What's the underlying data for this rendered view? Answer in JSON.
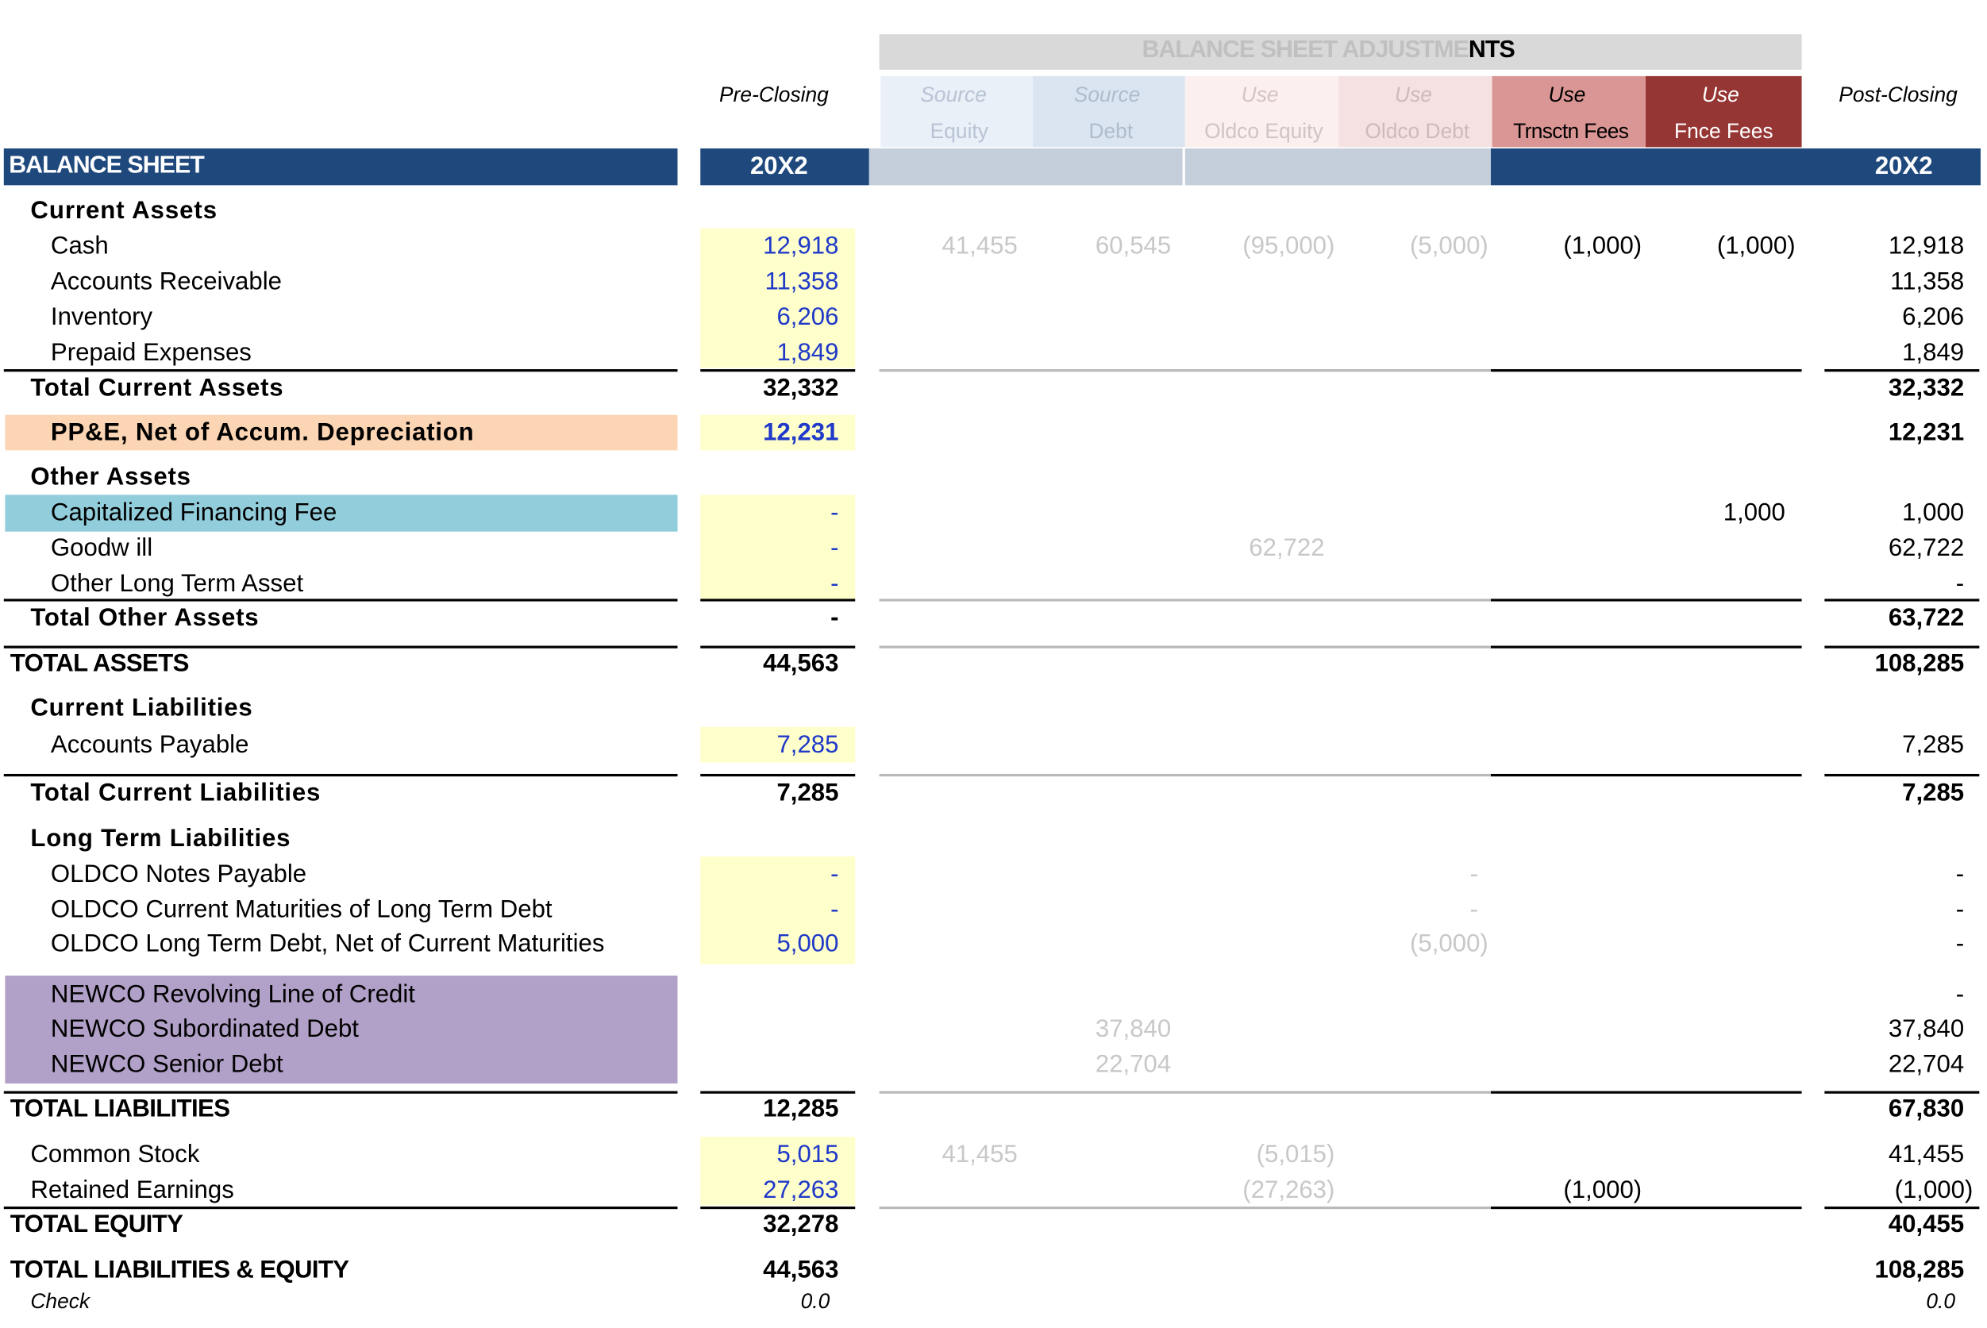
{
  "banner": {
    "title_light": "BALANCE SHEET ADJUSTME",
    "title_dark": "NTS",
    "colors": {
      "banner_bg": "#d9d9d9",
      "banner_text": "#c0c0c0"
    }
  },
  "columns": {
    "pre_closing": "Pre-Closing",
    "post_closing": "Post-Closing",
    "adjustments": [
      {
        "line1": "Source",
        "line2": "Equity",
        "bg": "#eaf0f8"
      },
      {
        "line1": "Source",
        "line2": "Debt",
        "bg": "#dbe5f1"
      },
      {
        "line1": "Use",
        "line2": "Oldco Equity",
        "bg": "#fbefef"
      },
      {
        "line1": "Use",
        "line2": "Oldco Debt",
        "bg": "#f5e1e1"
      },
      {
        "line1": "Use",
        "line2": "Trnsctn Fees",
        "bg": "#da9694"
      },
      {
        "line1": "Use",
        "line2": "Fnce Fees",
        "bg": "#963634"
      }
    ]
  },
  "title_bar": {
    "label": "BALANCE SHEET",
    "year_pre": "20X2",
    "year_post": "20X2",
    "colors": {
      "navy": "#1f497d",
      "light_band": "#c5cfdc"
    }
  },
  "highlight_colors": {
    "input": "#ffffcc",
    "ppe": "#fcd5b4",
    "financing_fee": "#92cddc",
    "newco": "#b1a0c7"
  },
  "rows": {
    "current_assets": {
      "label": "Current Assets"
    },
    "cash": {
      "label": "Cash",
      "pre": "12,918",
      "equity": "41,455",
      "debt": "60,545",
      "oldco_equity": "(95,000)",
      "oldco_debt": "(5,000)",
      "trnsctn": "(1,000)",
      "fnce": "(1,000)",
      "post": "12,918"
    },
    "ar": {
      "label": "Accounts Receivable",
      "pre": "11,358",
      "post": "11,358"
    },
    "inventory": {
      "label": "Inventory",
      "pre": "6,206",
      "post": "6,206"
    },
    "prepaid": {
      "label": "Prepaid Expenses",
      "pre": "1,849",
      "post": "1,849"
    },
    "total_current_assets": {
      "label": "Total Current Assets",
      "pre": "32,332",
      "post": "32,332"
    },
    "ppe": {
      "label": "PP&E, Net of Accum. Depreciation",
      "pre": "12,231",
      "post": "12,231"
    },
    "other_assets": {
      "label": "Other Assets"
    },
    "cap_fin_fee": {
      "label": "Capitalized Financing Fee",
      "pre": "-",
      "fnce": "1,000",
      "post": "1,000"
    },
    "goodwill": {
      "label": "Goodw ill",
      "pre": "-",
      "oldco_equity": "62,722",
      "post": "62,722"
    },
    "other_lt_asset": {
      "label": "Other Long Term Asset",
      "pre": "-",
      "post": "-"
    },
    "total_other_assets": {
      "label": "Total Other Assets",
      "pre": "-",
      "post": "63,722"
    },
    "total_assets": {
      "label": "TOTAL ASSETS",
      "pre": "44,563",
      "post": "108,285"
    },
    "current_liabilities": {
      "label": "Current Liabilities"
    },
    "ap": {
      "label": "Accounts Payable",
      "pre": "7,285",
      "post": "7,285"
    },
    "total_current_liabilities": {
      "label": "Total Current Liabilities",
      "pre": "7,285",
      "post": "7,285"
    },
    "lt_liabilities": {
      "label": "Long Term Liabilities"
    },
    "oldco_notes": {
      "label": "OLDCO Notes Payable",
      "pre": "-",
      "oldco_debt": "-",
      "post": "-"
    },
    "oldco_current_maturities": {
      "label": "OLDCO Current Maturities of Long Term Debt",
      "pre": "-",
      "oldco_debt": "-",
      "post": "-"
    },
    "oldco_ltd": {
      "label": "OLDCO Long Term Debt, Net of Current Maturities",
      "pre": "5,000",
      "oldco_debt": "(5,000)",
      "post": "-"
    },
    "newco_revolver": {
      "label": "NEWCO Revolving Line of Credit",
      "post": "-"
    },
    "newco_sub_debt": {
      "label": "NEWCO Subordinated Debt",
      "debt": "37,840",
      "post": "37,840"
    },
    "newco_senior_debt": {
      "label": "NEWCO Senior Debt",
      "debt": "22,704",
      "post": "22,704"
    },
    "total_liabilities": {
      "label": "TOTAL LIABILITIES",
      "pre": "12,285",
      "post": "67,830"
    },
    "common_stock": {
      "label": "Common Stock",
      "pre": "5,015",
      "equity": "41,455",
      "oldco_equity": "(5,015)",
      "post": "41,455"
    },
    "retained_earnings": {
      "label": "Retained Earnings",
      "pre": "27,263",
      "oldco_equity": "(27,263)",
      "trnsctn": "(1,000)",
      "post": "(1,000)"
    },
    "total_equity": {
      "label": "TOTAL EQUITY",
      "pre": "32,278",
      "post": "40,455"
    },
    "total_le": {
      "label": "TOTAL LIABILITIES & EQUITY",
      "pre": "44,563",
      "post": "108,285"
    },
    "check": {
      "label": "Check",
      "pre": "0.0",
      "post": "0.0"
    }
  }
}
